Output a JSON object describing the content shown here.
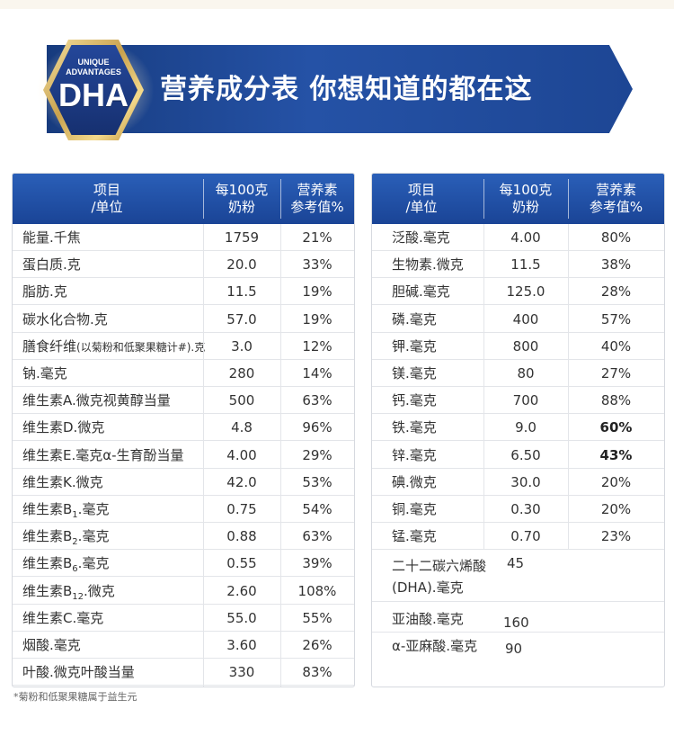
{
  "banner": {
    "badge_line1": "UNIQUE",
    "badge_line2": "ADVANTAGES",
    "badge_big": "DHA",
    "title": "营养成分表  你想知道的都在这"
  },
  "headers": {
    "item_line1": "项目",
    "item_line2": "/单位",
    "per100_line1": "每100克",
    "per100_line2": "奶粉",
    "nrv_line1": "营养素",
    "nrv_line2": "参考值%"
  },
  "left_rows": [
    {
      "name": "能量.千焦",
      "value": "1759",
      "nrv": "21%"
    },
    {
      "name": "蛋白质.克",
      "value": "20.0",
      "nrv": "33%"
    },
    {
      "name": "脂肪.克",
      "value": "11.5",
      "nrv": "19%"
    },
    {
      "name": "碳水化合物.克",
      "value": "57.0",
      "nrv": "19%"
    },
    {
      "name_main": "膳食纤维",
      "name_note": "(以菊粉和低聚果糖计#).克",
      "value": "3.0",
      "nrv": "12%"
    },
    {
      "name": "钠.毫克",
      "value": "280",
      "nrv": "14%"
    },
    {
      "name": "维生素A.微克视黄醇当量",
      "value": "500",
      "nrv": "63%"
    },
    {
      "name": "维生素D.微克",
      "value": "4.8",
      "nrv": "96%"
    },
    {
      "name": "维生素E.毫克α-生育酚当量",
      "value": "4.00",
      "nrv": "29%"
    },
    {
      "name": "维生素K.微克",
      "value": "42.0",
      "nrv": "53%"
    },
    {
      "name_pre": "维生素B",
      "name_sub": "1",
      "name_post": ".毫克",
      "value": "0.75",
      "nrv": "54%"
    },
    {
      "name_pre": "维生素B",
      "name_sub": "2",
      "name_post": ".毫克",
      "value": "0.88",
      "nrv": "63%"
    },
    {
      "name_pre": "维生素B",
      "name_sub": "6",
      "name_post": ".毫克",
      "value": "0.55",
      "nrv": "39%"
    },
    {
      "name_pre": "维生素B",
      "name_sub": "12",
      "name_post": ".微克",
      "value": "2.60",
      "nrv": "108%"
    },
    {
      "name": "维生素C.毫克",
      "value": "55.0",
      "nrv": "55%"
    },
    {
      "name": "烟酸.毫克",
      "value": "3.60",
      "nrv": "26%"
    },
    {
      "name": "叶酸.微克叶酸当量",
      "value": "330",
      "nrv": "83%"
    }
  ],
  "right_rows": [
    {
      "name": "泛酸.毫克",
      "value": "4.00",
      "nrv": "80%"
    },
    {
      "name": "生物素.微克",
      "value": "11.5",
      "nrv": "38%"
    },
    {
      "name": "胆碱.毫克",
      "value": "125.0",
      "nrv": "28%"
    },
    {
      "name": "磷.毫克",
      "value": "400",
      "nrv": "57%"
    },
    {
      "name": "钾.毫克",
      "value": "800",
      "nrv": "40%"
    },
    {
      "name": "镁.毫克",
      "value": "80",
      "nrv": "27%"
    },
    {
      "name": "钙.毫克",
      "value": "700",
      "nrv": "88%"
    },
    {
      "name": "铁.毫克",
      "value": "9.0",
      "nrv": "60%"
    },
    {
      "name": "锌.毫克",
      "value": "6.50",
      "nrv": "43%"
    },
    {
      "name": "碘.微克",
      "value": "30.0",
      "nrv": "20%"
    },
    {
      "name": "铜.毫克",
      "value": "0.30",
      "nrv": "20%"
    },
    {
      "name": "锰.毫克",
      "value": "0.70",
      "nrv": "23%"
    }
  ],
  "right_extra": [
    {
      "name_line1": "二十二碳六烯酸",
      "name_line2": "(DHA).毫克",
      "value": "45"
    },
    {
      "name": "亚油酸.毫克",
      "value": "160"
    },
    {
      "name": "α-亚麻酸.毫克",
      "value": "90"
    }
  ],
  "footnote": "*菊粉和低聚果糖属于益生元"
}
